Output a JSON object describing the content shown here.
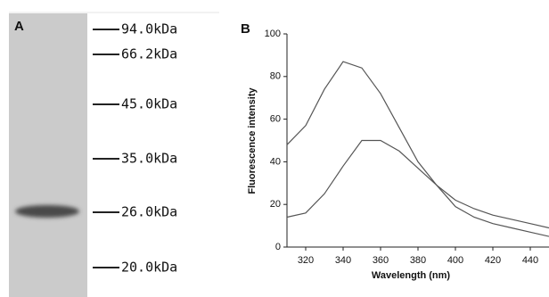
{
  "panel_a": {
    "label": "A",
    "markers": [
      "94.0kDa",
      "66.2kDa",
      "45.0kDa",
      "35.0kDa",
      "26.0kDa",
      "20.0kDa"
    ]
  },
  "chart_data": {
    "type": "line",
    "panel_label": "B",
    "x_label": "Wavelength (nm)",
    "y_label": "Fluorescence intensity",
    "x": [
      310,
      320,
      330,
      340,
      350,
      360,
      370,
      380,
      390,
      400,
      410,
      420,
      430,
      440,
      450
    ],
    "series": [
      {
        "color": "#555555",
        "values": [
          48,
          57,
          74,
          87,
          84,
          72,
          56,
          40,
          29,
          19,
          14,
          11,
          9,
          7,
          5
        ]
      },
      {
        "color": "#555555",
        "values": [
          14,
          16,
          25,
          38,
          50,
          50,
          45,
          37,
          29,
          22,
          18,
          15,
          13,
          11,
          9
        ]
      }
    ],
    "xlim": [
      310,
      450
    ],
    "ylim": [
      0,
      100
    ],
    "xticks": [
      320,
      340,
      360,
      380,
      400,
      420,
      440
    ],
    "yticks": [
      0,
      20,
      40,
      60,
      80,
      100
    ]
  }
}
